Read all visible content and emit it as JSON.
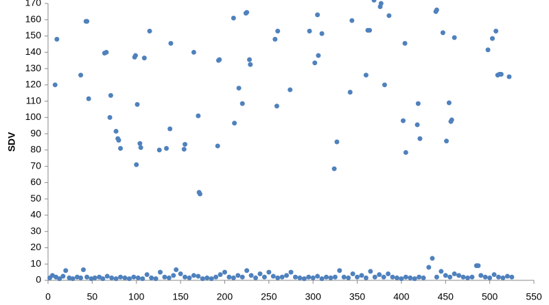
{
  "chart_data": {
    "type": "scatter",
    "y_label": "SDV",
    "color": "#4f81bd",
    "xlim": [
      0,
      550
    ],
    "xticks": [
      0,
      50,
      100,
      150,
      200,
      250,
      300,
      350,
      400,
      450,
      500,
      550
    ],
    "ylim": [
      0,
      170
    ],
    "yticks": [
      0,
      10,
      20,
      30,
      40,
      50,
      60,
      70,
      80,
      90,
      100,
      110,
      120,
      130,
      140,
      150,
      160,
      170
    ],
    "x": [
      2,
      5,
      9,
      13,
      17,
      20,
      24,
      28,
      33,
      37,
      40,
      44,
      49,
      53,
      58,
      62,
      67,
      72,
      77,
      82,
      87,
      92,
      97,
      102,
      107,
      112,
      117,
      122,
      127,
      132,
      137,
      142,
      145,
      150,
      155,
      160,
      165,
      170,
      175,
      180,
      185,
      190,
      195,
      200,
      205,
      210,
      215,
      220,
      225,
      230,
      235,
      240,
      245,
      250,
      255,
      260,
      265,
      270,
      275,
      280,
      285,
      290,
      295,
      300,
      305,
      310,
      315,
      320,
      325,
      330,
      335,
      340,
      345,
      350,
      355,
      360,
      365,
      370,
      375,
      380,
      385,
      390,
      395,
      400,
      405,
      410,
      415,
      420,
      425,
      431,
      435,
      440,
      445,
      450,
      455,
      460,
      465,
      470,
      475,
      480,
      485,
      487,
      490,
      495,
      500,
      505,
      510,
      515,
      520,
      525,
      8,
      10,
      37,
      43,
      44,
      46,
      64,
      66,
      70,
      71,
      77,
      79,
      80,
      82,
      98,
      99,
      100,
      101,
      104,
      105,
      109,
      115,
      126,
      134,
      138,
      139,
      154,
      155,
      165,
      170,
      171,
      172,
      192,
      193,
      194,
      210,
      211,
      216,
      220,
      224,
      225,
      228,
      229,
      257,
      259,
      260,
      274,
      296,
      302,
      305,
      306,
      310,
      324,
      327,
      342,
      344,
      360,
      362,
      364,
      369,
      376,
      377,
      381,
      386,
      402,
      404,
      405,
      418,
      419,
      421,
      439,
      440,
      447,
      451,
      454,
      456,
      457,
      460,
      498,
      503,
      507,
      509,
      511,
      513,
      522
    ],
    "values": [
      1.5,
      3,
      2,
      1,
      2.5,
      6,
      1.5,
      1,
      2,
      1.5,
      6.5,
      2,
      1,
      1.5,
      2,
      1,
      2.5,
      1.5,
      1,
      2,
      1.5,
      1,
      2,
      1.5,
      1,
      3.5,
      1.5,
      1,
      5,
      2,
      1.5,
      3,
      6.5,
      4,
      2,
      1.5,
      3,
      2.5,
      1,
      1.5,
      1,
      2,
      3.5,
      5,
      2,
      1.5,
      3,
      2,
      6,
      3,
      1.5,
      4,
      2,
      5,
      2.5,
      1.5,
      2,
      3,
      5,
      2,
      1.5,
      1,
      2,
      1.5,
      2.5,
      1,
      2,
      1.5,
      2,
      6,
      2,
      1.5,
      4,
      2,
      3,
      1.5,
      5.5,
      2,
      3.5,
      2,
      4,
      2,
      1.5,
      1,
      2,
      1.5,
      1,
      2,
      1.5,
      8,
      13.5,
      2,
      5.5,
      3,
      2,
      4,
      3,
      2,
      1.5,
      2,
      9,
      9,
      3,
      2,
      1.5,
      3.5,
      2,
      1.5,
      2.5,
      2,
      120,
      148,
      126,
      159,
      159,
      111.5,
      139.5,
      140,
      100,
      113.5,
      91.5,
      87,
      86,
      81,
      137,
      138,
      71,
      108,
      84,
      81.5,
      136.5,
      153,
      80,
      81,
      93,
      145.5,
      80.5,
      83.5,
      140,
      101,
      54,
      53,
      82.5,
      135,
      135.5,
      161,
      96.5,
      118,
      108.5,
      164,
      164.5,
      135.5,
      132.5,
      148,
      107,
      153,
      117,
      153,
      133.5,
      163,
      138,
      151.5,
      68.5,
      85,
      115.5,
      159.5,
      126,
      153.5,
      153.5,
      172,
      168,
      170,
      120,
      162.5,
      98,
      145.5,
      78.5,
      95.5,
      108.5,
      87,
      165,
      166,
      152,
      85.5,
      109,
      97.5,
      98.5,
      149,
      141.5,
      148.5,
      153,
      126,
      126.5,
      126.5,
      125
    ]
  }
}
